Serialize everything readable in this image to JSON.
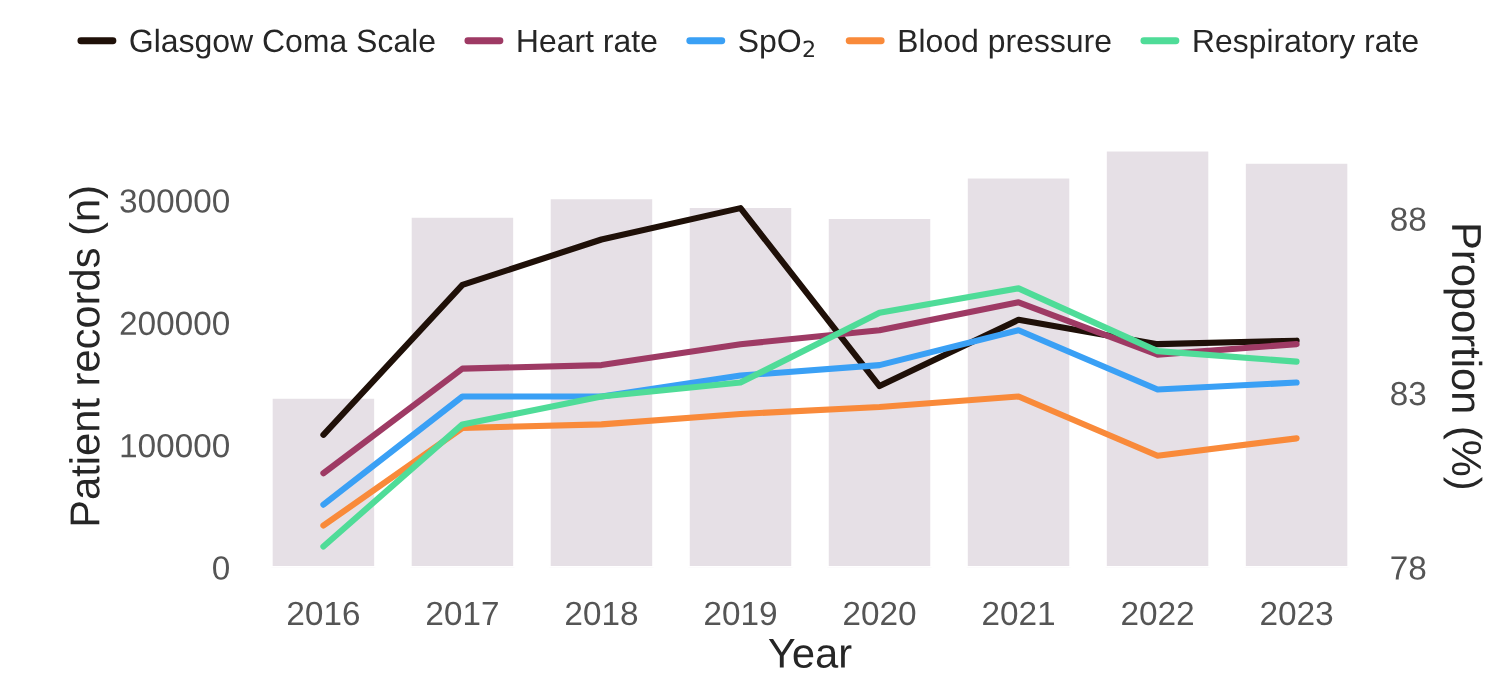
{
  "chart_data": {
    "type": "bar",
    "xlabel": "Year",
    "ylabel": "Patient records (n)",
    "y2label": "Proportion (%)",
    "categories": [
      "2016",
      "2017",
      "2018",
      "2019",
      "2020",
      "2021",
      "2022",
      "2023"
    ],
    "series": [
      {
        "color": "#e6e0e6",
        "values": [
          139000,
          287000,
          302000,
          295000,
          286000,
          319000,
          341000,
          331000
        ]
      },
      {
        "type": "line",
        "axis": "y2",
        "name": "Glasgow Coma Scale",
        "color": "#1f1008",
        "values": [
          81.8,
          86.1,
          87.4,
          88.3,
          83.2,
          85.1,
          84.4,
          84.5
        ]
      },
      {
        "type": "line",
        "axis": "y2",
        "name": "Heart rate",
        "color": "#9e3a64",
        "values": [
          80.7,
          83.7,
          83.8,
          84.4,
          84.8,
          85.6,
          84.1,
          84.4
        ]
      },
      {
        "type": "line",
        "axis": "y2",
        "name": "SpO$_{2}$",
        "color": "#3aa0f5",
        "values": [
          79.8,
          82.9,
          82.9,
          83.5,
          83.8,
          84.8,
          83.1,
          83.3
        ]
      },
      {
        "type": "line",
        "axis": "y2",
        "name": "Blood pressure",
        "color": "#f98a3a",
        "values": [
          79.2,
          82.0,
          82.1,
          82.4,
          82.6,
          82.9,
          81.2,
          81.7
        ]
      },
      {
        "type": "line",
        "axis": "y2",
        "name": "Respiratory rate",
        "color": "#4fdc98",
        "values": [
          78.6,
          82.1,
          82.9,
          83.3,
          85.3,
          86.0,
          84.2,
          83.9
        ]
      }
    ],
    "ylim": [
      0,
      345000
    ],
    "yticks": [
      0,
      100000,
      200000,
      300000
    ],
    "y2lim": [
      78,
      90.1
    ],
    "y2ticks": [
      78,
      83,
      88
    ],
    "grid": false,
    "legend": "top",
    "line_style": "solid",
    "marker": "none"
  }
}
